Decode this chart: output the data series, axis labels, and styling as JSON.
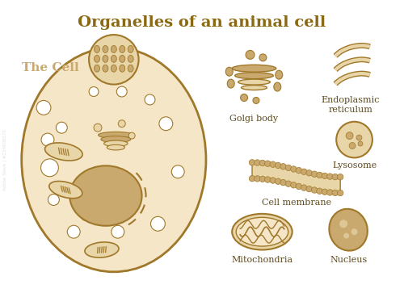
{
  "title": "Organelles of an animal cell",
  "title_color": "#8B6914",
  "title_fontsize": 14,
  "bg_color": "#ffffff",
  "cell_fill": "#F5E6C8",
  "cell_stroke": "#A0782A",
  "organelle_fill": "#C9A96E",
  "organelle_stroke": "#8B6914",
  "organelle_light": "#E8D5A8",
  "label_color": "#5C4A1E",
  "label_fontsize": 8,
  "the_cell_label": "The Cell",
  "labels": {
    "golgi": "Golgi body",
    "er": "Endoplasmic\nreticulum",
    "lysosome": "Lysosome",
    "membrane": "Cell membrane",
    "mitochondria": "Mitochondria",
    "nucleus": "Nucleus"
  }
}
